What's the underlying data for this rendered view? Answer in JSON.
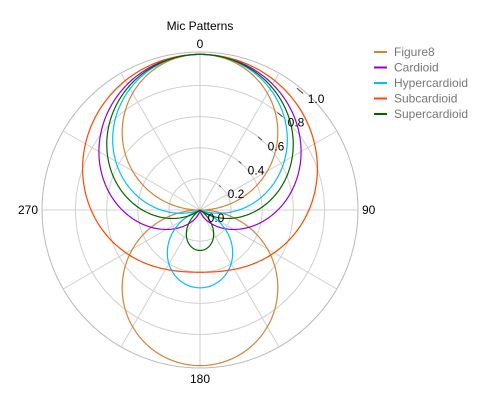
{
  "chart_data": {
    "type": "polar-line",
    "title": "Mic Patterns",
    "angle_unit": "degrees",
    "direction": "clockwise",
    "zero_location": "top",
    "angular_ticks": [
      "0",
      "90",
      "180",
      "270"
    ],
    "radial_range": [
      0,
      1.0
    ],
    "radial_ticks": [
      "0.0",
      "0.2",
      "0.4",
      "0.6",
      "0.8",
      "1.0"
    ],
    "radial_tick_values": [
      0,
      0.2,
      0.4,
      0.6,
      0.8,
      1.0
    ],
    "grid": true,
    "legend_position": "top-right",
    "series": [
      {
        "name": "Figure8",
        "color": "#d2843a",
        "a": 0.0
      },
      {
        "name": "Cardioid",
        "color": "#9400d3",
        "a": 0.5
      },
      {
        "name": "Hypercardioid",
        "color": "#00bfff",
        "a": 0.25
      },
      {
        "name": "Subcardioid",
        "color": "#ff4500",
        "a": 0.7
      },
      {
        "name": "Supercardioid",
        "color": "#006400",
        "a": 0.37
      }
    ],
    "pattern_formula": "r(theta) = | a + (1 - a) * cos(theta) |"
  }
}
